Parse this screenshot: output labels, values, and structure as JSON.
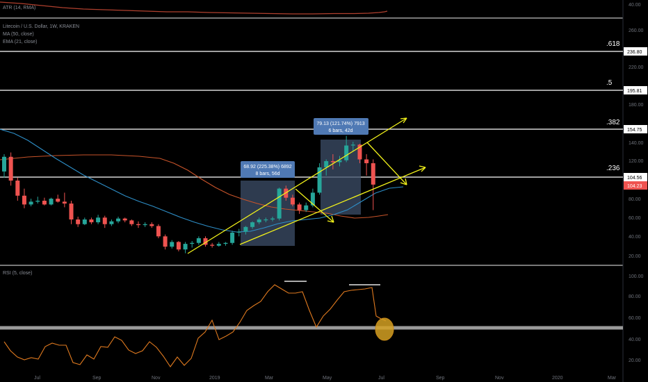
{
  "colors": {
    "background": "#000000",
    "up": "#26a69a",
    "down": "#ef5350",
    "ma50": "#2e8fc8",
    "ema21": "#c9542a",
    "atr": "#b0402e",
    "rsi": "#e07a1f",
    "trend": "#f2f21a",
    "measure_box": "#4f79b4",
    "measure_shade": "#3d4f6a",
    "fib_line": "#d6d6d6",
    "price_line": "#ef5350"
  },
  "atr": {
    "legend": "ATR (14, RMA)",
    "axis_label": "40.00"
  },
  "main": {
    "legend": {
      "symbol": "Litecoin / U.S. Dollar, 1W, KRAKEN",
      "ma": "MA (50, close)",
      "ema": "EMA (21, close)"
    },
    "y_ticks": [
      "260.00",
      "220.00",
      "200.00",
      "180.00",
      "160.00",
      "140.00",
      "120.00",
      "100.00",
      "80.00",
      "60.00",
      "40.00",
      "20.00"
    ],
    "fib_levels": [
      {
        "label": ".618",
        "price": "236.80"
      },
      {
        "label": ".5",
        "price": "195.81"
      },
      {
        "label": ".382",
        "price": "154.75"
      },
      {
        "label": ".236",
        "price": "104.56"
      }
    ],
    "last_price": "104.23",
    "measures": [
      {
        "line1": "68.92 (225.38%) 6892",
        "line2": "8 bars, 56d"
      },
      {
        "line1": "79.13 (121.74%) 7913",
        "line2": "6 bars, 42d"
      }
    ]
  },
  "rsi": {
    "legend": "RSI (5, close)",
    "y_ticks": [
      "100.00",
      "80.00",
      "60.00",
      "40.00",
      "20.00"
    ]
  },
  "x_axis": {
    "labels": [
      "Jul",
      "Sep",
      "Nov",
      "2019",
      "Mar",
      "May",
      "Jul",
      "Sep",
      "Nov",
      "2020",
      "Mar"
    ]
  },
  "chart_data": {
    "type": "candlestick",
    "title": "Litecoin / U.S. Dollar, 1W, KRAKEN",
    "xlabel": "",
    "ylabel": "",
    "ylim": [
      15,
      280
    ],
    "grid": false,
    "legend_position": "top-left",
    "candles": [
      {
        "o": 110,
        "h": 128,
        "l": 104,
        "c": 125
      },
      {
        "o": 125,
        "h": 130,
        "l": 95,
        "c": 100
      },
      {
        "o": 100,
        "h": 104,
        "l": 80,
        "c": 85
      },
      {
        "o": 85,
        "h": 92,
        "l": 72,
        "c": 76
      },
      {
        "o": 76,
        "h": 82,
        "l": 74,
        "c": 79
      },
      {
        "o": 79,
        "h": 84,
        "l": 77,
        "c": 80
      },
      {
        "o": 80,
        "h": 83,
        "l": 75,
        "c": 76
      },
      {
        "o": 76,
        "h": 83,
        "l": 75,
        "c": 82
      },
      {
        "o": 82,
        "h": 86,
        "l": 78,
        "c": 79
      },
      {
        "o": 79,
        "h": 88,
        "l": 73,
        "c": 77
      },
      {
        "o": 77,
        "h": 80,
        "l": 55,
        "c": 60
      },
      {
        "o": 60,
        "h": 63,
        "l": 52,
        "c": 55
      },
      {
        "o": 55,
        "h": 62,
        "l": 54,
        "c": 60
      },
      {
        "o": 60,
        "h": 62,
        "l": 55,
        "c": 57
      },
      {
        "o": 57,
        "h": 65,
        "l": 55,
        "c": 62
      },
      {
        "o": 62,
        "h": 64,
        "l": 51,
        "c": 55
      },
      {
        "o": 55,
        "h": 60,
        "l": 53,
        "c": 58
      },
      {
        "o": 58,
        "h": 63,
        "l": 56,
        "c": 61
      },
      {
        "o": 61,
        "h": 62,
        "l": 57,
        "c": 59
      },
      {
        "o": 59,
        "h": 60,
        "l": 53,
        "c": 55
      },
      {
        "o": 55,
        "h": 58,
        "l": 51,
        "c": 54
      },
      {
        "o": 54,
        "h": 57,
        "l": 52,
        "c": 55
      },
      {
        "o": 55,
        "h": 57,
        "l": 51,
        "c": 53
      },
      {
        "o": 53,
        "h": 55,
        "l": 40,
        "c": 42
      },
      {
        "o": 42,
        "h": 44,
        "l": 28,
        "c": 31
      },
      {
        "o": 31,
        "h": 38,
        "l": 29,
        "c": 36
      },
      {
        "o": 36,
        "h": 37,
        "l": 26,
        "c": 28
      },
      {
        "o": 28,
        "h": 36,
        "l": 24,
        "c": 34
      },
      {
        "o": 34,
        "h": 37,
        "l": 30,
        "c": 35
      },
      {
        "o": 35,
        "h": 42,
        "l": 33,
        "c": 40
      },
      {
        "o": 40,
        "h": 42,
        "l": 31,
        "c": 33
      },
      {
        "o": 33,
        "h": 35,
        "l": 30,
        "c": 32
      },
      {
        "o": 32,
        "h": 36,
        "l": 31,
        "c": 34
      },
      {
        "o": 34,
        "h": 36,
        "l": 32,
        "c": 35
      },
      {
        "o": 35,
        "h": 48,
        "l": 33,
        "c": 46
      },
      {
        "o": 46,
        "h": 50,
        "l": 42,
        "c": 47
      },
      {
        "o": 47,
        "h": 53,
        "l": 44,
        "c": 52
      },
      {
        "o": 52,
        "h": 58,
        "l": 50,
        "c": 57
      },
      {
        "o": 57,
        "h": 62,
        "l": 55,
        "c": 60
      },
      {
        "o": 60,
        "h": 62,
        "l": 57,
        "c": 60
      },
      {
        "o": 60,
        "h": 63,
        "l": 58,
        "c": 61
      },
      {
        "o": 61,
        "h": 93,
        "l": 59,
        "c": 92
      },
      {
        "o": 92,
        "h": 95,
        "l": 80,
        "c": 83
      },
      {
        "o": 83,
        "h": 86,
        "l": 74,
        "c": 76
      },
      {
        "o": 76,
        "h": 78,
        "l": 66,
        "c": 70
      },
      {
        "o": 70,
        "h": 78,
        "l": 68,
        "c": 75
      },
      {
        "o": 75,
        "h": 92,
        "l": 73,
        "c": 88
      },
      {
        "o": 88,
        "h": 118,
        "l": 86,
        "c": 114
      },
      {
        "o": 114,
        "h": 122,
        "l": 106,
        "c": 120
      },
      {
        "o": 120,
        "h": 128,
        "l": 112,
        "c": 119
      },
      {
        "o": 119,
        "h": 126,
        "l": 115,
        "c": 121
      },
      {
        "o": 121,
        "h": 148,
        "l": 119,
        "c": 138
      },
      {
        "o": 138,
        "h": 142,
        "l": 131,
        "c": 139
      },
      {
        "o": 139,
        "h": 140,
        "l": 118,
        "c": 122
      },
      {
        "o": 122,
        "h": 128,
        "l": 106,
        "c": 118
      },
      {
        "o": 118,
        "h": 122,
        "l": 70,
        "c": 96
      }
    ]
  }
}
